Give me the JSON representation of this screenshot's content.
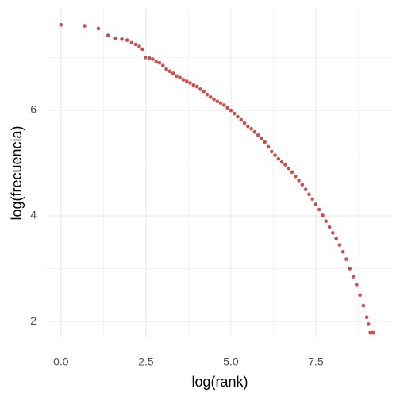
{
  "chart_data": {
    "type": "scatter",
    "x_label": "log(rank)",
    "y_label": "log(frecuencia)",
    "color": "#c9514d",
    "grid": true,
    "xlim": [
      -0.44,
      9.79
    ],
    "ylim": [
      1.7,
      7.94
    ],
    "xticks": [
      {
        "value": 0,
        "label": "0.0"
      },
      2.5,
      {
        "value": 5,
        "label": "5.0"
      },
      7.5
    ],
    "yticks": [
      2,
      4,
      6
    ],
    "x_minor_ticks": [
      1.25,
      3.75,
      6.25,
      8.75
    ],
    "y_minor_ticks": [
      3,
      5,
      7
    ],
    "x": [
      0,
      0.693,
      1.099,
      1.386,
      1.609,
      1.792,
      1.946,
      2.079,
      2.197,
      2.303,
      2.398,
      2.485,
      2.6,
      2.7,
      2.8,
      2.9,
      3.0,
      3.1,
      3.2,
      3.3,
      3.4,
      3.5,
      3.6,
      3.7,
      3.8,
      3.9,
      4.0,
      4.1,
      4.2,
      4.3,
      4.4,
      4.5,
      4.6,
      4.7,
      4.8,
      4.9,
      5.0,
      5.1,
      5.2,
      5.3,
      5.4,
      5.5,
      5.6,
      5.7,
      5.8,
      5.9,
      6.0,
      6.1,
      6.2,
      6.3,
      6.4,
      6.5,
      6.6,
      6.7,
      6.8,
      6.9,
      7.0,
      7.1,
      7.2,
      7.3,
      7.4,
      7.5,
      7.6,
      7.7,
      7.8,
      7.9,
      8.0,
      8.1,
      8.2,
      8.3,
      8.4,
      8.5,
      8.6,
      8.7,
      8.8,
      8.9,
      9.0,
      9.05,
      9.1,
      9.15,
      9.2
    ],
    "values": [
      7.62,
      7.6,
      7.55,
      7.42,
      7.36,
      7.35,
      7.33,
      7.28,
      7.25,
      7.21,
      7.16,
      7.0,
      6.99,
      6.97,
      6.92,
      6.9,
      6.85,
      6.78,
      6.74,
      6.7,
      6.65,
      6.62,
      6.58,
      6.55,
      6.52,
      6.48,
      6.45,
      6.4,
      6.36,
      6.3,
      6.25,
      6.21,
      6.17,
      6.14,
      6.1,
      6.05,
      6.0,
      5.94,
      5.88,
      5.82,
      5.76,
      5.7,
      5.65,
      5.59,
      5.53,
      5.47,
      5.4,
      5.31,
      5.22,
      5.15,
      5.08,
      5.02,
      4.97,
      4.9,
      4.83,
      4.75,
      4.67,
      4.59,
      4.5,
      4.41,
      4.32,
      4.22,
      4.12,
      4.01,
      3.9,
      3.79,
      3.68,
      3.57,
      3.45,
      3.32,
      3.18,
      3.0,
      2.85,
      2.7,
      2.5,
      2.3,
      2.08,
      1.95,
      1.79,
      1.79,
      1.79
    ]
  }
}
